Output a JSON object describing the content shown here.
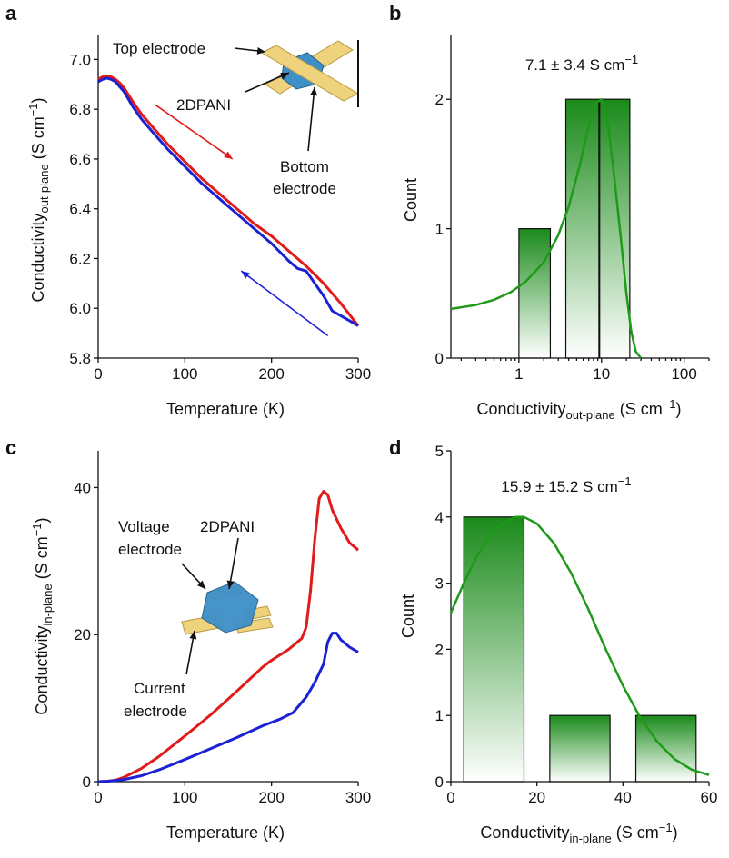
{
  "panel_labels": {
    "a": "a",
    "b": "b",
    "c": "c",
    "d": "d"
  },
  "colors": {
    "heating": "#e11a1a",
    "cooling": "#1b22d4",
    "fit": "#1d9a17",
    "bar": "#1f8a1f",
    "electrode": "#efd27c",
    "film": "#3d8fc8"
  },
  "chart_data": [
    {
      "id": "a",
      "type": "line",
      "xlabel": "Temperature (K)",
      "ylabel": {
        "main": "Conductivity",
        "sub": "out-plane",
        "unit": " (S cm",
        "sup": "−1",
        "close": ")"
      },
      "xlim": [
        0,
        300
      ],
      "ylim": [
        5.8,
        7.1
      ],
      "xticks": [
        0,
        100,
        200,
        300
      ],
      "yticks": [
        5.8,
        6.0,
        6.2,
        6.4,
        6.6,
        6.8,
        7.0
      ],
      "yticklabels": [
        "5.8",
        "6.0",
        "6.2",
        "6.4",
        "6.6",
        "6.8",
        "7.0"
      ],
      "series": [
        {
          "color": "#e11a1a",
          "x": [
            0,
            5,
            10,
            15,
            20,
            25,
            30,
            40,
            50,
            60,
            80,
            100,
            120,
            150,
            180,
            200,
            220,
            240,
            260,
            280,
            300
          ],
          "y": [
            6.92,
            6.93,
            6.933,
            6.93,
            6.92,
            6.905,
            6.885,
            6.83,
            6.78,
            6.74,
            6.66,
            6.59,
            6.52,
            6.43,
            6.34,
            6.29,
            6.23,
            6.17,
            6.1,
            6.02,
            5.93
          ]
        },
        {
          "color": "#1b22d4",
          "x": [
            0,
            5,
            10,
            15,
            20,
            25,
            30,
            40,
            50,
            60,
            80,
            100,
            120,
            150,
            180,
            200,
            220,
            230,
            240,
            250,
            260,
            270,
            280,
            300
          ],
          "y": [
            6.91,
            6.92,
            6.925,
            6.92,
            6.91,
            6.89,
            6.87,
            6.81,
            6.76,
            6.72,
            6.64,
            6.57,
            6.5,
            6.41,
            6.32,
            6.26,
            6.19,
            6.16,
            6.15,
            6.1,
            6.05,
            5.99,
            5.97,
            5.93
          ]
        }
      ],
      "arrows": [
        {
          "color": "#e11a1a",
          "from": [
            65,
            6.82
          ],
          "to": [
            155,
            6.6
          ]
        },
        {
          "color": "#1b22d4",
          "from": [
            265,
            5.89
          ],
          "to": [
            165,
            6.15
          ]
        }
      ],
      "annotations": {
        "top_electrode": "Top electrode",
        "film": "2DPANI",
        "bottom_electrode_1": "Bottom",
        "bottom_electrode_2": "electrode"
      }
    },
    {
      "id": "b",
      "type": "bar",
      "xscale": "log",
      "xlabel": {
        "main": "Conductivity",
        "sub": "out-plane",
        "unit": " (S cm",
        "sup": "−1",
        "close": ")"
      },
      "ylabel": "Count",
      "xlim": [
        0.15,
        200
      ],
      "ylim": [
        0,
        2.5
      ],
      "xticks": [
        1,
        10,
        100
      ],
      "xticklabels": [
        "1",
        "10",
        "100"
      ],
      "yticks": [
        0,
        1,
        2
      ],
      "bars": [
        {
          "x0": 1.0,
          "x1": 2.4,
          "count": 1
        },
        {
          "x0": 3.7,
          "x1": 9.3,
          "count": 2
        },
        {
          "x0": 9.5,
          "x1": 22,
          "count": 2
        }
      ],
      "fit": {
        "x": [
          0.15,
          0.3,
          0.5,
          0.8,
          1.2,
          2,
          3,
          4,
          5.5,
          7,
          8.5,
          10,
          12,
          14,
          17,
          20,
          23,
          26,
          30
        ],
        "y": [
          0.38,
          0.41,
          0.45,
          0.51,
          0.59,
          0.74,
          0.95,
          1.17,
          1.5,
          1.8,
          1.97,
          2.0,
          1.8,
          1.45,
          0.95,
          0.5,
          0.2,
          0.05,
          0.0
        ]
      },
      "text": {
        "value": "7.1 ± 3.4 S cm",
        "sup": "−1"
      }
    },
    {
      "id": "c",
      "type": "line",
      "xlabel": "Temperature (K)",
      "ylabel": {
        "main": "Conductivity",
        "sub": "in-plane",
        "unit": " (S cm",
        "sup": "−1",
        "close": ")"
      },
      "xlim": [
        0,
        300
      ],
      "ylim": [
        0,
        45
      ],
      "xticks": [
        0,
        100,
        200,
        300
      ],
      "yticks": [
        0,
        20,
        40
      ],
      "series": [
        {
          "color": "#e11a1a",
          "x": [
            0,
            10,
            20,
            30,
            50,
            70,
            100,
            130,
            160,
            190,
            200,
            220,
            235,
            240,
            245,
            250,
            255,
            260,
            265,
            270,
            280,
            290,
            300
          ],
          "y": [
            0,
            0.05,
            0.2,
            0.6,
            1.8,
            3.4,
            6.2,
            9.1,
            12.3,
            15.6,
            16.5,
            18.0,
            19.5,
            21.0,
            26.0,
            33.0,
            38.5,
            39.5,
            39.0,
            37.0,
            34.5,
            32.5,
            31.5
          ]
        },
        {
          "color": "#1b22d4",
          "x": [
            0,
            10,
            20,
            30,
            50,
            70,
            100,
            130,
            160,
            190,
            210,
            225,
            240,
            250,
            260,
            265,
            270,
            275,
            280,
            290,
            300
          ],
          "y": [
            0,
            0.05,
            0.15,
            0.3,
            0.8,
            1.6,
            3.0,
            4.5,
            6.0,
            7.6,
            8.5,
            9.4,
            11.5,
            13.5,
            16.0,
            19.0,
            20.2,
            20.2,
            19.3,
            18.3,
            17.6
          ]
        }
      ],
      "annotations": {
        "voltage_electrode_1": "Voltage",
        "voltage_electrode_2": "electrode",
        "film": "2DPANI",
        "current_electrode_1": "Current",
        "current_electrode_2": "electrode"
      }
    },
    {
      "id": "d",
      "type": "bar",
      "xlabel": {
        "main": "Conductivity",
        "sub": "in-plane",
        "unit": " (S cm",
        "sup": "−1",
        "close": ")"
      },
      "ylabel": "Count",
      "xlim": [
        0,
        60
      ],
      "ylim": [
        0,
        5
      ],
      "xticks": [
        0,
        20,
        40,
        60
      ],
      "yticks": [
        0,
        1,
        2,
        3,
        4,
        5
      ],
      "bars": [
        {
          "x0": 3,
          "x1": 17,
          "count": 4
        },
        {
          "x0": 23,
          "x1": 37,
          "count": 1
        },
        {
          "x0": 43,
          "x1": 57,
          "count": 1
        }
      ],
      "fit": {
        "x": [
          0,
          3,
          6,
          9,
          12,
          15,
          17,
          20,
          24,
          28,
          32,
          36,
          40,
          44,
          48,
          52,
          56,
          60
        ],
        "y": [
          2.55,
          3.0,
          3.4,
          3.7,
          3.9,
          4.0,
          4.0,
          3.9,
          3.6,
          3.15,
          2.6,
          2.0,
          1.45,
          0.97,
          0.6,
          0.34,
          0.18,
          0.1
        ]
      },
      "text": {
        "value": "15.9 ± 15.2 S cm",
        "sup": "−1"
      }
    }
  ]
}
